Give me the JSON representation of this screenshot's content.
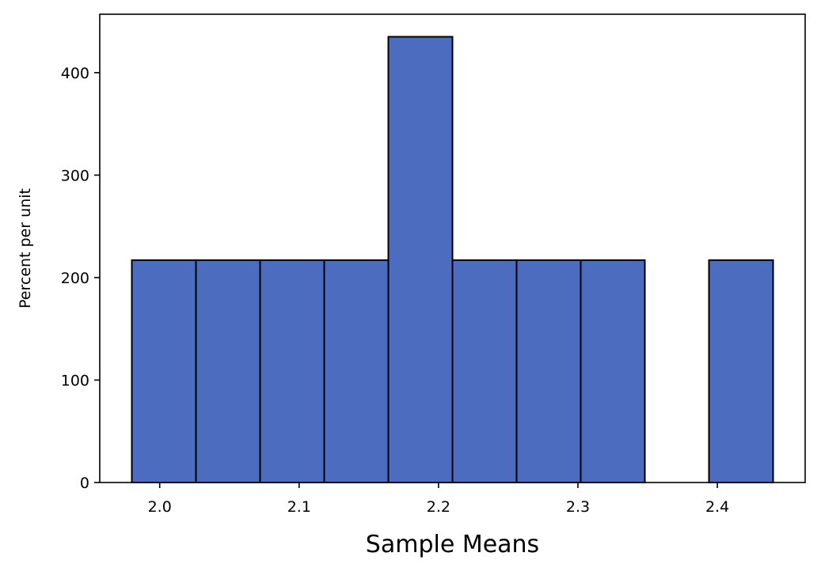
{
  "chart_data": {
    "type": "bar",
    "title": "",
    "xlabel": "Sample Means",
    "ylabel": "Percent per unit",
    "bin_edges": [
      1.98,
      2.026,
      2.072,
      2.118,
      2.164,
      2.21,
      2.256,
      2.302,
      2.348,
      2.394,
      2.44
    ],
    "values": [
      217,
      217,
      217,
      217,
      435,
      217,
      217,
      217,
      0,
      217
    ],
    "xlim": [
      1.957,
      2.463
    ],
    "ylim": [
      0,
      457
    ],
    "xticks": [
      2.0,
      2.1,
      2.2,
      2.3,
      2.4
    ],
    "xtick_labels": [
      "2.0",
      "2.1",
      "2.2",
      "2.3",
      "2.4"
    ],
    "yticks": [
      0,
      100,
      200,
      300,
      400
    ],
    "ytick_labels": [
      "0",
      "100",
      "200",
      "300",
      "400"
    ],
    "bar_color": "#4c6cbf",
    "edge_color": "#000000",
    "grid": false
  }
}
